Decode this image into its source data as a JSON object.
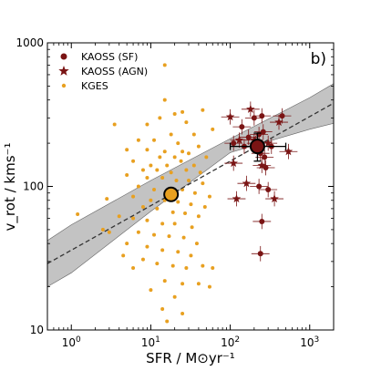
{
  "chart_data": {
    "type": "scatter",
    "panel_label": "b)",
    "xlabel": "SFR / M⊙yr⁻¹",
    "ylabel": "v_rot / kms⁻¹",
    "x_scale": "log",
    "y_scale": "log",
    "xlim": [
      0.5,
      2000
    ],
    "ylim": [
      10,
      1000
    ],
    "x_ticks": [
      1,
      10,
      100,
      1000
    ],
    "x_tick_labels": [
      "10⁰",
      "10¹",
      "10²",
      "10³"
    ],
    "y_ticks": [
      10,
      100,
      1000
    ],
    "y_tick_labels": [
      "10",
      "100",
      "1000"
    ],
    "grid": false,
    "legend_position": "top-left",
    "legend": [
      {
        "label": "KAOSS (SF)",
        "marker": "circle",
        "color": "#7a1414"
      },
      {
        "label": "KAOSS (AGN)",
        "marker": "star",
        "color": "#7a1414"
      },
      {
        "label": "KGES",
        "marker": "dot",
        "color": "#e8a020"
      }
    ],
    "colors": {
      "kaoss": "#7a1414",
      "kges": "#e8a020",
      "fit_band": "#bdbdbd",
      "fit_line": "#333333"
    },
    "fit": {
      "line": [
        [
          0.5,
          29
        ],
        [
          2000,
          380
        ]
      ],
      "band_upper": [
        [
          0.5,
          42
        ],
        [
          1,
          54
        ],
        [
          10,
          110
        ],
        [
          100,
          215
        ],
        [
          1000,
          415
        ],
        [
          2000,
          520
        ]
      ],
      "band_lower": [
        [
          0.5,
          20
        ],
        [
          1,
          25
        ],
        [
          10,
          67
        ],
        [
          100,
          172
        ],
        [
          1000,
          250
        ],
        [
          2000,
          275
        ]
      ]
    },
    "median_points": [
      {
        "name": "KGES median",
        "x": 18,
        "y": 88,
        "color": "#e8a020"
      },
      {
        "name": "KAOSS median",
        "x": 220,
        "y": 190,
        "color": "#7a1414",
        "xerr": [
          100,
          500
        ],
        "yerr": [
          150,
          235
        ]
      }
    ],
    "series": [
      {
        "name": "KGES",
        "points": [
          [
            15,
            700
          ],
          [
            3.5,
            270
          ],
          [
            15,
            400
          ],
          [
            20,
            320
          ],
          [
            25,
            330
          ],
          [
            9,
            270
          ],
          [
            13,
            300
          ],
          [
            28,
            280
          ],
          [
            45,
            340
          ],
          [
            35,
            230
          ],
          [
            18,
            230
          ],
          [
            60,
            250
          ],
          [
            7,
            210
          ],
          [
            11,
            210
          ],
          [
            22,
            200
          ],
          [
            40,
            190
          ],
          [
            5,
            180
          ],
          [
            9,
            180
          ],
          [
            15,
            175
          ],
          [
            25,
            175
          ],
          [
            13,
            160
          ],
          [
            20,
            160
          ],
          [
            30,
            170
          ],
          [
            50,
            160
          ],
          [
            6,
            150
          ],
          [
            10,
            140
          ],
          [
            16,
            140
          ],
          [
            24,
            150
          ],
          [
            35,
            140
          ],
          [
            8,
            130
          ],
          [
            12,
            130
          ],
          [
            18,
            125
          ],
          [
            28,
            130
          ],
          [
            42,
            125
          ],
          [
            5,
            120
          ],
          [
            9,
            115
          ],
          [
            14,
            115
          ],
          [
            21,
            110
          ],
          [
            30,
            110
          ],
          [
            45,
            105
          ],
          [
            7,
            100
          ],
          [
            11,
            95
          ],
          [
            17,
            95
          ],
          [
            25,
            95
          ],
          [
            36,
            90
          ],
          [
            55,
            85
          ],
          [
            6,
            85
          ],
          [
            10,
            80
          ],
          [
            15,
            80
          ],
          [
            22,
            78
          ],
          [
            32,
            75
          ],
          [
            48,
            72
          ],
          [
            8,
            72
          ],
          [
            12,
            70
          ],
          [
            19,
            66
          ],
          [
            27,
            65
          ],
          [
            40,
            62
          ],
          [
            2.8,
            82
          ],
          [
            4,
            62
          ],
          [
            2.5,
            50
          ],
          [
            6,
            60
          ],
          [
            1.2,
            64
          ],
          [
            9,
            58
          ],
          [
            14,
            55
          ],
          [
            20,
            55
          ],
          [
            33,
            52
          ],
          [
            3,
            48
          ],
          [
            7,
            48
          ],
          [
            11,
            46
          ],
          [
            17,
            45
          ],
          [
            26,
            44
          ],
          [
            38,
            40
          ],
          [
            5,
            40
          ],
          [
            9,
            38
          ],
          [
            14,
            36
          ],
          [
            22,
            35
          ],
          [
            32,
            33
          ],
          [
            4.5,
            33
          ],
          [
            8,
            31
          ],
          [
            12,
            29
          ],
          [
            19,
            28
          ],
          [
            28,
            27
          ],
          [
            45,
            28
          ],
          [
            60,
            27
          ],
          [
            6,
            27
          ],
          [
            15,
            22
          ],
          [
            25,
            21
          ],
          [
            55,
            20
          ],
          [
            10,
            19
          ],
          [
            20,
            17
          ],
          [
            14,
            14
          ],
          [
            25,
            13
          ],
          [
            16,
            11.5
          ],
          [
            40,
            21
          ]
        ]
      },
      {
        "name": "KAOSS (SF)",
        "points": [
          [
            200,
            300
          ],
          [
            250,
            310
          ],
          [
            140,
            260
          ],
          [
            260,
            240
          ],
          [
            170,
            220
          ],
          [
            230,
            230
          ],
          [
            210,
            200
          ],
          [
            150,
            190
          ],
          [
            240,
            170
          ],
          [
            330,
            190
          ],
          [
            270,
            160
          ],
          [
            280,
            135
          ],
          [
            230,
            100
          ],
          [
            300,
            95
          ],
          [
            250,
            57
          ],
          [
            240,
            34
          ],
          [
            110,
            200
          ],
          [
            450,
            310
          ]
        ]
      },
      {
        "name": "KAOSS (AGN)",
        "points": [
          [
            100,
            305
          ],
          [
            180,
            345
          ],
          [
            130,
            210
          ],
          [
            200,
            210
          ],
          [
            300,
            200
          ],
          [
            540,
            175
          ],
          [
            110,
            145
          ],
          [
            250,
            140
          ],
          [
            120,
            82
          ],
          [
            360,
            82
          ],
          [
            410,
            280
          ],
          [
            160,
            105
          ]
        ]
      }
    ]
  }
}
